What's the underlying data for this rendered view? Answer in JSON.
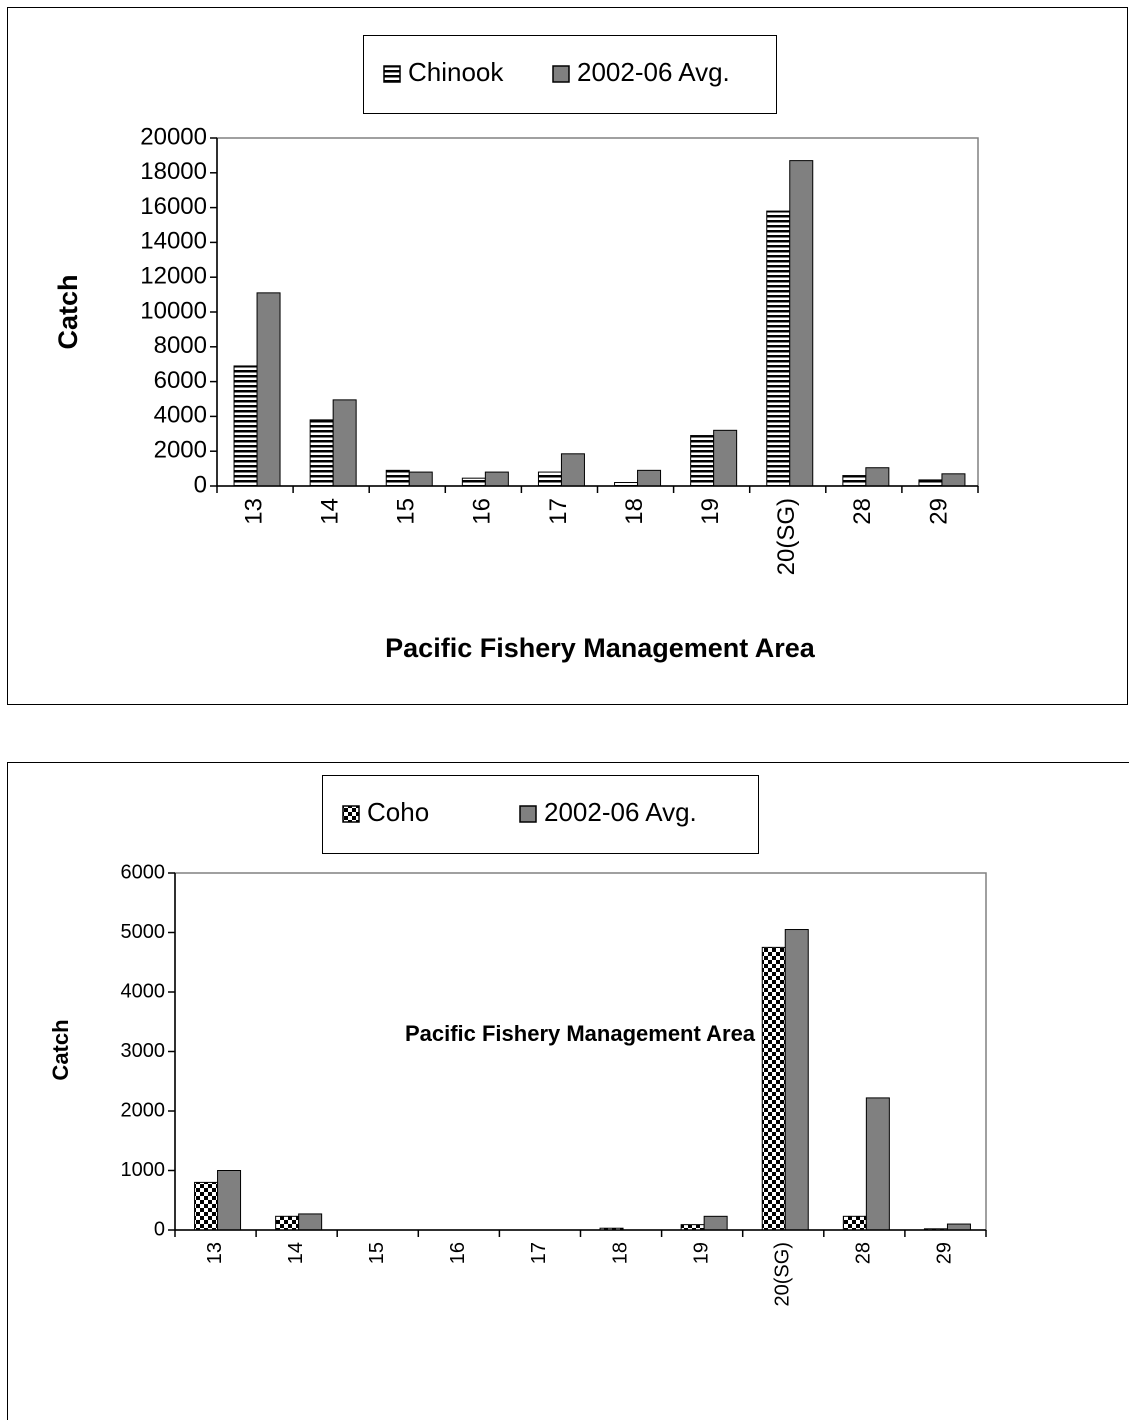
{
  "chart_data": [
    {
      "type": "bar",
      "y_label": "Catch",
      "x_label": "Pacific Fishery Management Area",
      "categories": [
        "13",
        "14",
        "15",
        "16",
        "17",
        "18",
        "19",
        "20(SG)",
        "28",
        "29"
      ],
      "series": [
        {
          "name": "Chinook",
          "color": "#000000",
          "pattern": "stripes",
          "values": [
            6900,
            3800,
            900,
            450,
            800,
            200,
            2900,
            15800,
            600,
            350
          ]
        },
        {
          "name": "2002-06 Avg.",
          "color": "#808080",
          "values": [
            11100,
            4950,
            800,
            800,
            1850,
            900,
            3200,
            18700,
            1050,
            700
          ]
        }
      ],
      "ylim": [
        0,
        20000
      ],
      "yticks": [
        0,
        2000,
        4000,
        6000,
        8000,
        10000,
        12000,
        14000,
        16000,
        18000,
        20000
      ]
    },
    {
      "type": "bar",
      "y_label": "Catch",
      "x_label": "Pacific Fishery Management Area",
      "categories": [
        "13",
        "14",
        "15",
        "16",
        "17",
        "18",
        "19",
        "20(SG)",
        "28",
        "29"
      ],
      "series": [
        {
          "name": "Coho",
          "color": "#000000",
          "pattern": "checker",
          "values": [
            800,
            230,
            0,
            0,
            0,
            30,
            90,
            4750,
            230,
            20
          ]
        },
        {
          "name": "2002-06 Avg.",
          "color": "#808080",
          "values": [
            1000,
            270,
            0,
            0,
            0,
            0,
            230,
            5050,
            2220,
            100
          ]
        }
      ],
      "ylim": [
        0,
        6000
      ],
      "yticks": [
        0,
        1000,
        2000,
        3000,
        4000,
        5000,
        6000
      ]
    }
  ]
}
